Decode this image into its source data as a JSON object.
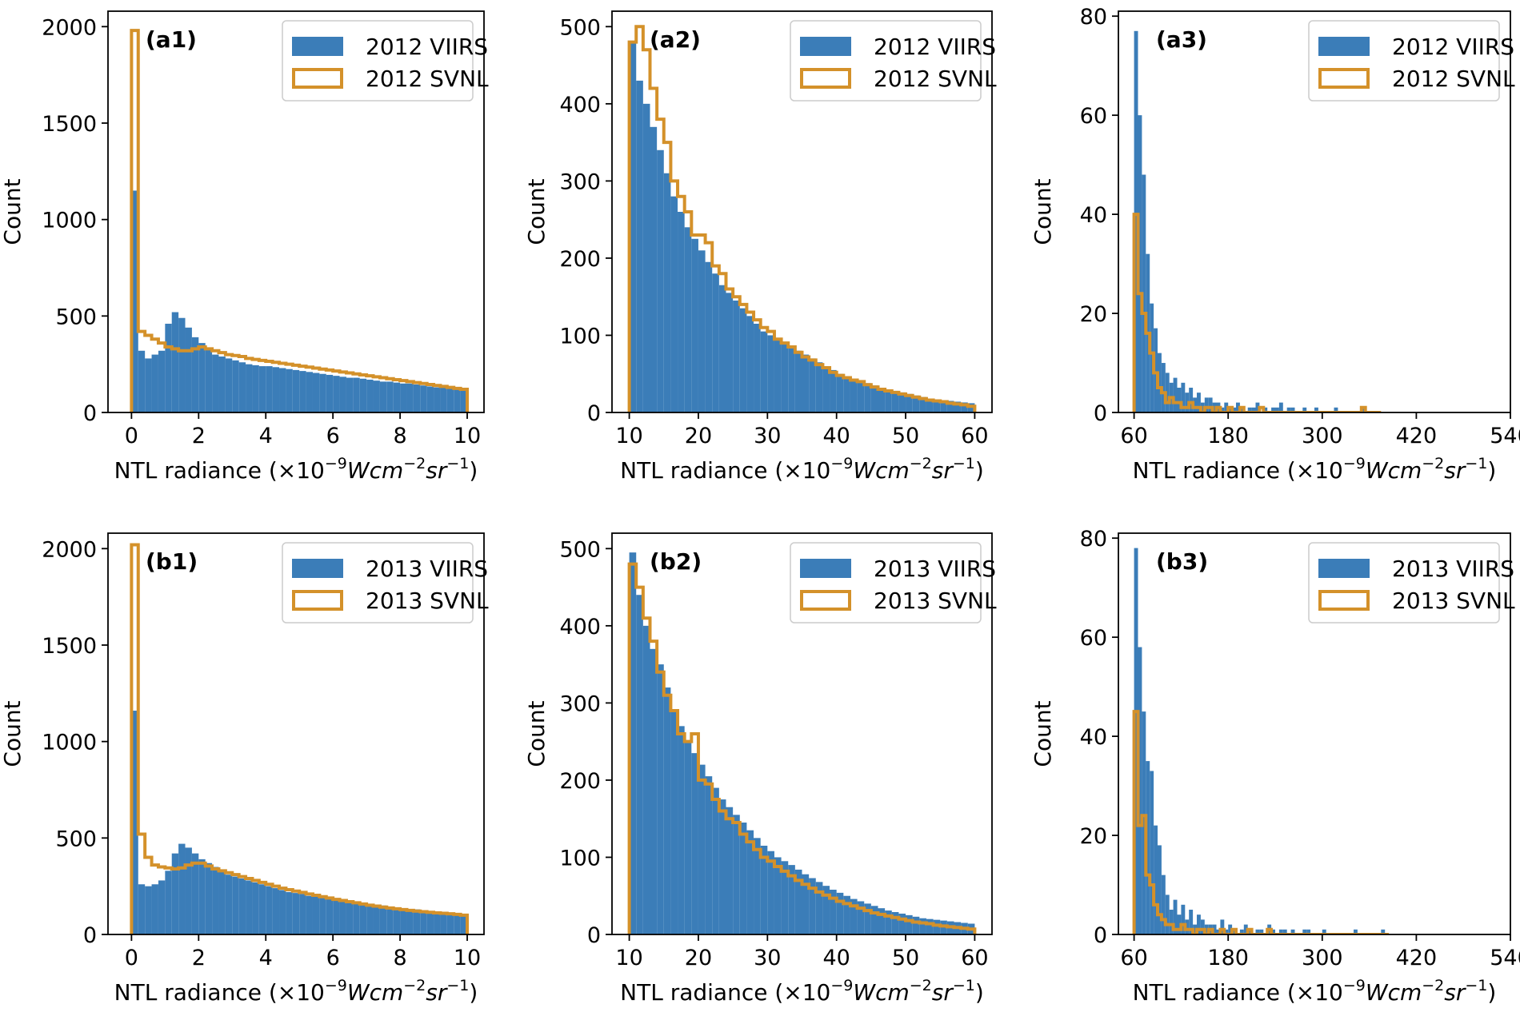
{
  "figure": {
    "viirs_color": "#3b7db8",
    "svnl_color": "#d4912a",
    "x_sup": "−9",
    "x_unit_a": "Wcm",
    "x_sup2": "−2",
    "x_unit_b": "sr",
    "x_sup3": "−1"
  },
  "chart_data": [
    {
      "panel": "(a1)",
      "type": "histogram",
      "xlabel": "NTL radiance (×10⁻⁹Wcm⁻²sr⁻¹)",
      "ylabel": "Count",
      "xlim": [
        -0.7,
        10.5
      ],
      "ylim": [
        0,
        2080
      ],
      "xticks": [
        0,
        2,
        4,
        6,
        8,
        10
      ],
      "yticks": [
        0,
        500,
        1000,
        1500,
        2000
      ],
      "legend": [
        "2012 VIIRS",
        "2012 SVNL"
      ],
      "legend_position": "top-right",
      "bins": {
        "start": 0,
        "width": 0.2
      },
      "series": [
        {
          "name": "2012 VIIRS",
          "kind": "filled",
          "values": [
            1150,
            320,
            280,
            300,
            320,
            460,
            520,
            490,
            440,
            390,
            360,
            330,
            300,
            290,
            280,
            270,
            260,
            250,
            245,
            240,
            240,
            235,
            230,
            225,
            220,
            215,
            210,
            205,
            200,
            195,
            190,
            185,
            180,
            180,
            175,
            170,
            165,
            160,
            160,
            155,
            150,
            150,
            145,
            140,
            135,
            130,
            130,
            125,
            120,
            120
          ]
        },
        {
          "name": "2012 SVNL",
          "kind": "step",
          "values": [
            1980,
            420,
            400,
            380,
            360,
            340,
            330,
            320,
            320,
            330,
            340,
            330,
            320,
            310,
            300,
            295,
            290,
            280,
            275,
            270,
            265,
            260,
            255,
            250,
            245,
            240,
            235,
            230,
            225,
            220,
            215,
            210,
            205,
            200,
            195,
            190,
            185,
            180,
            175,
            170,
            165,
            160,
            155,
            150,
            145,
            140,
            135,
            130,
            125,
            120
          ]
        }
      ]
    },
    {
      "panel": "(a2)",
      "type": "histogram",
      "xlabel": "NTL radiance (×10⁻⁹Wcm⁻²sr⁻¹)",
      "ylabel": "Count",
      "xlim": [
        7.5,
        62.5
      ],
      "ylim": [
        0,
        520
      ],
      "xticks": [
        10,
        20,
        30,
        40,
        50,
        60
      ],
      "yticks": [
        0,
        100,
        200,
        300,
        400,
        500
      ],
      "legend": [
        "2012 VIIRS",
        "2012 SVNL"
      ],
      "legend_position": "top-right",
      "bins": {
        "start": 10,
        "width": 1.0
      },
      "series": [
        {
          "name": "2012 VIIRS",
          "kind": "filled",
          "values": [
            480,
            430,
            400,
            370,
            340,
            310,
            280,
            260,
            240,
            225,
            210,
            195,
            180,
            165,
            155,
            145,
            135,
            125,
            115,
            105,
            100,
            95,
            90,
            85,
            80,
            75,
            70,
            65,
            60,
            55,
            50,
            47,
            44,
            41,
            38,
            35,
            32,
            30,
            28,
            26,
            24,
            22,
            20,
            18,
            17,
            16,
            15,
            14,
            13,
            12
          ]
        },
        {
          "name": "2012 SVNL",
          "kind": "step",
          "values": [
            480,
            500,
            470,
            420,
            380,
            350,
            300,
            280,
            260,
            230,
            230,
            220,
            190,
            180,
            160,
            150,
            140,
            130,
            120,
            110,
            105,
            95,
            90,
            85,
            78,
            72,
            68,
            62,
            58,
            52,
            48,
            45,
            42,
            40,
            36,
            33,
            30,
            28,
            26,
            24,
            22,
            20,
            18,
            16,
            15,
            14,
            12,
            11,
            10,
            8
          ]
        }
      ]
    },
    {
      "panel": "(a3)",
      "type": "histogram",
      "xlabel": "NTL radiance (×10⁻⁹Wcm⁻²sr⁻¹)",
      "ylabel": "Count",
      "xlim": [
        40,
        540
      ],
      "ylim": [
        0,
        81
      ],
      "xticks": [
        60,
        180,
        300,
        420,
        540
      ],
      "yticks": [
        0,
        20,
        40,
        60,
        80
      ],
      "legend": [
        "2012 VIIRS",
        "2012 SVNL"
      ],
      "legend_position": "top-right",
      "bins": {
        "start": 60,
        "width": 5
      },
      "series": [
        {
          "name": "2012 VIIRS",
          "kind": "filled",
          "values": [
            77,
            60,
            48,
            32,
            22,
            17,
            12,
            10,
            8,
            6,
            7,
            5,
            6,
            4,
            5,
            3,
            4,
            2,
            3,
            3,
            2,
            2,
            1,
            2,
            1,
            1,
            2,
            1,
            0,
            1,
            1,
            2,
            0,
            1,
            0,
            1,
            1,
            2,
            0,
            1,
            1,
            0,
            0,
            1,
            0,
            0,
            1,
            0,
            0,
            0,
            0,
            1,
            0,
            0,
            0,
            0,
            0,
            0,
            1,
            0,
            0,
            0,
            0
          ]
        },
        {
          "name": "2012 SVNL",
          "kind": "step",
          "values": [
            40,
            24,
            20,
            16,
            12,
            8,
            5,
            4,
            2,
            3,
            2,
            2,
            1,
            1,
            2,
            1,
            1,
            0,
            1,
            1,
            0,
            1,
            0,
            0,
            1,
            0,
            0,
            1,
            0,
            0,
            0,
            0,
            1,
            0,
            0,
            0,
            0,
            0,
            0,
            0,
            0,
            0,
            0,
            0,
            0,
            0,
            0,
            0,
            0,
            0,
            0,
            0,
            0,
            0,
            0,
            0,
            0,
            0,
            1,
            0,
            0,
            0,
            0
          ]
        }
      ]
    },
    {
      "panel": "(b1)",
      "type": "histogram",
      "xlabel": "NTL radiance (×10⁻⁹Wcm⁻²sr⁻¹)",
      "ylabel": "Count",
      "xlim": [
        -0.7,
        10.5
      ],
      "ylim": [
        0,
        2080
      ],
      "xticks": [
        0,
        2,
        4,
        6,
        8,
        10
      ],
      "yticks": [
        0,
        500,
        1000,
        1500,
        2000
      ],
      "legend": [
        "2013 VIIRS",
        "2013 SVNL"
      ],
      "legend_position": "top-right",
      "bins": {
        "start": 0,
        "width": 0.2
      },
      "series": [
        {
          "name": "2013 VIIRS",
          "kind": "filled",
          "values": [
            1160,
            260,
            250,
            260,
            280,
            330,
            420,
            470,
            450,
            420,
            390,
            370,
            350,
            330,
            310,
            300,
            290,
            280,
            270,
            260,
            250,
            240,
            230,
            220,
            215,
            210,
            200,
            195,
            190,
            185,
            180,
            175,
            170,
            165,
            160,
            155,
            150,
            150,
            145,
            140,
            135,
            130,
            130,
            125,
            120,
            115,
            115,
            110,
            105,
            100
          ]
        },
        {
          "name": "2013 SVNL",
          "kind": "step",
          "values": [
            2020,
            520,
            400,
            360,
            350,
            345,
            340,
            345,
            360,
            370,
            370,
            355,
            340,
            330,
            320,
            310,
            300,
            290,
            280,
            270,
            260,
            250,
            240,
            232,
            225,
            218,
            210,
            203,
            196,
            189,
            182,
            176,
            170,
            164,
            158,
            152,
            147,
            142,
            137,
            133,
            129,
            125,
            121,
            118,
            115,
            112,
            110,
            107,
            104,
            100
          ]
        }
      ]
    },
    {
      "panel": "(b2)",
      "type": "histogram",
      "xlabel": "NTL radiance (×10⁻⁹Wcm⁻²sr⁻¹)",
      "ylabel": "Count",
      "xlim": [
        7.5,
        62.5
      ],
      "ylim": [
        0,
        520
      ],
      "xticks": [
        10,
        20,
        30,
        40,
        50,
        60
      ],
      "yticks": [
        0,
        100,
        200,
        300,
        400,
        500
      ],
      "legend": [
        "2013 VIIRS",
        "2013 SVNL"
      ],
      "legend_position": "top-right",
      "bins": {
        "start": 10,
        "width": 1.0
      },
      "series": [
        {
          "name": "2013 VIIRS",
          "kind": "filled",
          "values": [
            495,
            440,
            400,
            370,
            350,
            320,
            290,
            270,
            250,
            235,
            220,
            205,
            190,
            175,
            165,
            155,
            145,
            135,
            125,
            115,
            108,
            100,
            95,
            90,
            84,
            78,
            73,
            68,
            63,
            58,
            54,
            50,
            46,
            43,
            40,
            37,
            34,
            31,
            29,
            27,
            25,
            23,
            21,
            20,
            19,
            18,
            17,
            16,
            15,
            14
          ]
        },
        {
          "name": "2013 SVNL",
          "kind": "step",
          "values": [
            480,
            450,
            410,
            380,
            340,
            310,
            290,
            260,
            250,
            260,
            200,
            195,
            175,
            160,
            150,
            145,
            130,
            120,
            110,
            100,
            95,
            88,
            82,
            76,
            70,
            65,
            60,
            55,
            51,
            47,
            43,
            40,
            37,
            34,
            31,
            28,
            26,
            24,
            22,
            20,
            18,
            16,
            15,
            14,
            12,
            11,
            10,
            9,
            8,
            7
          ]
        }
      ]
    },
    {
      "panel": "(b3)",
      "type": "histogram",
      "xlabel": "NTL radiance (×10⁻⁹Wcm⁻²sr⁻¹)",
      "ylabel": "Count",
      "xlim": [
        40,
        540
      ],
      "ylim": [
        0,
        81
      ],
      "xticks": [
        60,
        180,
        300,
        420,
        540
      ],
      "yticks": [
        0,
        20,
        40,
        60,
        80
      ],
      "legend": [
        "2013 VIIRS",
        "2013 SVNL"
      ],
      "legend_position": "top-right",
      "bins": {
        "start": 60,
        "width": 5
      },
      "series": [
        {
          "name": "2013 VIIRS",
          "kind": "filled",
          "values": [
            78,
            58,
            45,
            35,
            33,
            22,
            18,
            12,
            8,
            5,
            7,
            4,
            6,
            3,
            5,
            2,
            4,
            3,
            2,
            2,
            2,
            1,
            3,
            1,
            2,
            1,
            0,
            1,
            2,
            1,
            0,
            1,
            1,
            0,
            2,
            1,
            0,
            1,
            1,
            0,
            1,
            0,
            0,
            1,
            1,
            0,
            0,
            0,
            1,
            0,
            0,
            0,
            0,
            0,
            0,
            0,
            1,
            0,
            0,
            0,
            0,
            0,
            0,
            1,
            0
          ]
        },
        {
          "name": "2013 SVNL",
          "kind": "step",
          "values": [
            45,
            22,
            24,
            12,
            10,
            6,
            4,
            3,
            2,
            2,
            1,
            1,
            2,
            1,
            1,
            0,
            1,
            1,
            0,
            1,
            0,
            0,
            1,
            0,
            0,
            1,
            0,
            0,
            0,
            1,
            0,
            0,
            0,
            0,
            1,
            0,
            0,
            0,
            0,
            0,
            0,
            0,
            0,
            0,
            0,
            0,
            0,
            0,
            0,
            0,
            0,
            0,
            0,
            0,
            0,
            0,
            0,
            0,
            0,
            0,
            0,
            0,
            0,
            0,
            0
          ]
        }
      ]
    }
  ]
}
